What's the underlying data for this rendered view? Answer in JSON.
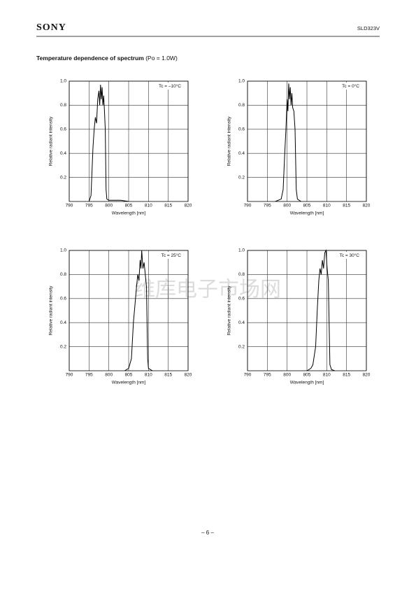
{
  "header": {
    "logo": "SONY",
    "part": "SLD323V"
  },
  "section": {
    "title": "Temperature dependence of spectrum",
    "note": "(Po = 1.0W)"
  },
  "watermark": "维库电子市场网",
  "chart_data": [
    {
      "type": "line",
      "annotation": "Tc = –10°C",
      "xlabel": "Wavelength [nm]",
      "ylabel": "Relative radiant intensity",
      "x": [
        795.0,
        795.5,
        796.0,
        796.3,
        796.6,
        796.9,
        797.2,
        797.5,
        797.7,
        797.9,
        798.1,
        798.3,
        798.5,
        798.7,
        798.9,
        799.1,
        799.3,
        799.5,
        800.0,
        803.0,
        805.0
      ],
      "values": [
        0,
        0.05,
        0.45,
        0.6,
        0.7,
        0.65,
        0.85,
        0.92,
        0.8,
        0.97,
        0.85,
        0.95,
        0.8,
        0.88,
        0.75,
        0.6,
        0.1,
        0.02,
        0.01,
        0.01,
        0
      ],
      "color": "#000000",
      "xlim": [
        790,
        820
      ],
      "ylim": [
        0,
        1.0
      ],
      "xticks": [
        790,
        795,
        800,
        805,
        810,
        815,
        820
      ],
      "yticks": [
        0.2,
        0.4,
        0.6,
        0.8,
        {
          "value": 1.0,
          "label": "1.0"
        }
      ],
      "grid": true
    },
    {
      "type": "line",
      "annotation": "Tc = 0°C",
      "xlabel": "Wavelength [nm]",
      "ylabel": "Relative radiant intensity",
      "x": [
        797.0,
        798.5,
        799.0,
        799.4,
        799.7,
        800.0,
        800.2,
        800.4,
        800.6,
        800.8,
        801.0,
        801.2,
        801.4,
        801.7,
        802.0,
        802.3,
        802.6,
        803.5
      ],
      "values": [
        0,
        0.02,
        0.1,
        0.4,
        0.6,
        0.85,
        0.75,
        0.98,
        0.85,
        0.95,
        0.8,
        0.9,
        0.78,
        0.75,
        0.6,
        0.1,
        0.02,
        0
      ],
      "color": "#000000",
      "xlim": [
        790,
        820
      ],
      "ylim": [
        0,
        1.0
      ],
      "xticks": [
        790,
        795,
        800,
        805,
        810,
        815,
        820
      ],
      "yticks": [
        0.2,
        0.4,
        0.6,
        0.8,
        {
          "value": 1.0,
          "label": "1.0"
        }
      ],
      "grid": true
    },
    {
      "type": "line",
      "annotation": "Tc = 25°C",
      "xlabel": "Wavelength [nm]",
      "ylabel": "Relative radiant intensity",
      "x": [
        804.0,
        805.0,
        805.7,
        806.2,
        806.6,
        807.0,
        807.3,
        807.6,
        807.9,
        808.1,
        808.3,
        808.6,
        808.9,
        809.2,
        809.5,
        809.8,
        810.0,
        811.0
      ],
      "values": [
        0,
        0.02,
        0.1,
        0.4,
        0.55,
        0.7,
        0.8,
        0.75,
        0.92,
        0.85,
        1.0,
        0.85,
        0.9,
        0.8,
        0.7,
        0.1,
        0.02,
        0
      ],
      "color": "#000000",
      "xlim": [
        790,
        820
      ],
      "ylim": [
        0,
        1.0
      ],
      "xticks": [
        790,
        795,
        800,
        805,
        810,
        815,
        820
      ],
      "yticks": [
        0.2,
        0.4,
        0.6,
        0.8,
        {
          "value": 1.0,
          "label": "1.0"
        }
      ],
      "grid": true
    },
    {
      "type": "line",
      "annotation": "Tc = 30°C",
      "xlabel": "Wavelength [nm]",
      "ylabel": "Relative radiant intensity",
      "x": [
        805.0,
        806.0,
        806.5,
        807.2,
        807.6,
        808.0,
        808.3,
        808.6,
        808.9,
        809.2,
        809.5,
        809.8,
        810.1,
        810.4,
        810.6,
        810.8,
        811.2,
        812.0
      ],
      "values": [
        0,
        0.02,
        0.05,
        0.2,
        0.5,
        0.75,
        0.85,
        0.8,
        0.92,
        0.85,
        0.98,
        1.0,
        0.85,
        0.75,
        0.4,
        0.05,
        0.01,
        0
      ],
      "color": "#000000",
      "xlim": [
        790,
        820
      ],
      "ylim": [
        0,
        1.0
      ],
      "xticks": [
        790,
        795,
        800,
        805,
        810,
        815,
        820
      ],
      "yticks": [
        0.2,
        0.4,
        0.6,
        0.8,
        {
          "value": 1.0,
          "label": "1.0"
        }
      ],
      "grid": true
    }
  ],
  "footer": {
    "page": "– 6 –"
  }
}
